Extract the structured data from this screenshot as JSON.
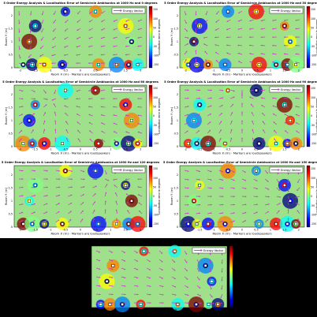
{
  "chart_data": [
    {
      "type": "heatmap",
      "title": "5 Order Energy Analysis & Localisation Error of Semicircle Ambisonics at 1000 Hz and 0 degrees",
      "xlabel": "Room X (m) - Markers are loudspeakers",
      "ylabel": "Room Y (m)",
      "colorbar_label": "Localisation error in degrees",
      "colorbar_ticks": [
        "150",
        "100",
        "50",
        "0",
        "-50",
        "-100",
        "-150"
      ],
      "legend": "Energy Vector",
      "x_ticks": [
        "-2",
        "-1.5",
        "-1",
        "-0.5",
        "0",
        "0.5",
        "1",
        "1.5",
        "2"
      ],
      "y_ticks": [
        "0",
        "0.5",
        "1",
        "1.5",
        "2"
      ],
      "source_angle_deg": 0,
      "arrow_angle_deg": [
        0,
        15,
        30,
        45,
        60,
        75,
        90,
        105,
        120,
        135,
        150,
        165,
        180
      ]
    },
    {
      "type": "heatmap",
      "title": "5 Order Energy Analysis & Localisation Error of Semicircle Ambisonics at 1000 Hz and 30 degrees",
      "xlabel": "Room X (m) - Markers are loudspeakers",
      "ylabel": "Room Y (m)",
      "colorbar_label": "Localisation error in degrees",
      "colorbar_ticks": [
        "150",
        "100",
        "50",
        "0",
        "-50",
        "-100",
        "-150"
      ],
      "legend": "Energy Vector",
      "x_ticks": [
        "-2",
        "-1.5",
        "-1",
        "-0.5",
        "0",
        "0.5",
        "1",
        "1.5",
        "2"
      ],
      "y_ticks": [
        "0",
        "0.5",
        "1",
        "1.5",
        "2"
      ],
      "source_angle_deg": 30
    },
    {
      "type": "heatmap",
      "title": "5 Order Energy Analysis & Localisation Error of Semicircle Ambisonics at 1000 Hz and 60 degrees",
      "xlabel": "Room X (m) - Markers are loudspeakers",
      "ylabel": "Room Y (m)",
      "colorbar_label": "Localisation error in degrees",
      "colorbar_ticks": [
        "150",
        "100",
        "50",
        "0",
        "-50",
        "-100",
        "-150"
      ],
      "legend": "Energy Vector",
      "x_ticks": [
        "-2",
        "-1.5",
        "-1",
        "-0.5",
        "0",
        "0.5",
        "1",
        "1.5",
        "2"
      ],
      "y_ticks": [
        "0",
        "0.5",
        "1",
        "1.5",
        "2"
      ],
      "source_angle_deg": 60
    },
    {
      "type": "heatmap",
      "title": "5 Order Energy Analysis & Localisation Error of Semicircle Ambisonics at 1000 Hz and 90 degrees",
      "xlabel": "Room X (m) - Markers are loudspeakers",
      "ylabel": "Room Y (m)",
      "colorbar_label": "Localisation error in degrees",
      "colorbar_ticks": [
        "150",
        "100",
        "50",
        "0",
        "-50",
        "-100",
        "-150"
      ],
      "legend": "Energy Vector",
      "x_ticks": [
        "-2",
        "-1.5",
        "-1",
        "-0.5",
        "0",
        "0.5",
        "1",
        "1.5",
        "2"
      ],
      "y_ticks": [
        "0",
        "0.5",
        "1",
        "1.5",
        "2"
      ],
      "source_angle_deg": 90
    },
    {
      "type": "heatmap",
      "title": "5 Order Energy Analysis & Localisation Error of Semicircle Ambisonics at 1000 Hz and 120 degrees",
      "xlabel": "Room X (m) - Markers are loudspeakers",
      "ylabel": "Room Y (m)",
      "colorbar_label": "Localisation error in degrees",
      "colorbar_ticks": [
        "150",
        "100",
        "50",
        "0",
        "-50",
        "-100",
        "-150"
      ],
      "legend": "Energy Vector",
      "x_ticks": [
        "-2",
        "-1.5",
        "-1",
        "-0.5",
        "0",
        "0.5",
        "1",
        "1.5",
        "2"
      ],
      "y_ticks": [
        "0",
        "0.5",
        "1",
        "1.5",
        "2"
      ],
      "source_angle_deg": 120
    },
    {
      "type": "heatmap",
      "title": "5 Order Energy Analysis & Localisation Error of Semicircle Ambisonics at 1000 Hz and 150 degrees",
      "xlabel": "Room X (m) - Markers are loudspeakers",
      "ylabel": "Room Y (m)",
      "colorbar_label": "Localisation error in degrees",
      "colorbar_ticks": [
        "150",
        "100",
        "50",
        "0",
        "-50",
        "-100",
        "-150"
      ],
      "legend": "Energy Vector",
      "x_ticks": [
        "-2",
        "-1.5",
        "-1",
        "-0.5",
        "0",
        "0.5",
        "1",
        "1.5",
        "2"
      ],
      "y_ticks": [
        "0",
        "0.5",
        "1",
        "1.5",
        "2"
      ],
      "source_angle_deg": 150
    },
    {
      "type": "heatmap",
      "title": "5 Order Energy Analysis & Localisation Error of Semicircle Ambisonics at 1000 Hz and 180 degrees",
      "xlabel": "Room X (m) - Markers are loudspeakers",
      "ylabel": "Room Y (m)",
      "colorbar_label": "Localisation error in degrees",
      "colorbar_ticks": [
        "150",
        "100",
        "50",
        "0",
        "-50",
        "-100",
        "-150"
      ],
      "legend": "Energy Vector",
      "x_ticks": [
        "-2",
        "-1.5",
        "-1",
        "-0.5",
        "0",
        "0.5",
        "1",
        "1.5",
        "2"
      ],
      "y_ticks": [
        "0",
        "0.5",
        "1",
        "1.5",
        "2"
      ],
      "source_angle_deg": 180
    }
  ],
  "colors": {
    "field": "#9fe08a",
    "arrow": "#cc33cc",
    "jet": [
      "#00007f",
      "#0000ff",
      "#0080ff",
      "#00ffff",
      "#80ff80",
      "#ffff00",
      "#ff8000",
      "#ff0000",
      "#7f0000"
    ]
  }
}
